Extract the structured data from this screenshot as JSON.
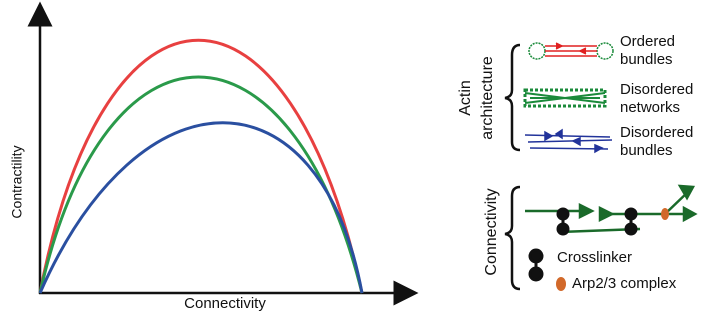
{
  "axes": {
    "y_label": "Contractility",
    "x_label": "Connectivity"
  },
  "architecture": {
    "title": [
      "Actin",
      "architecture"
    ],
    "items": [
      {
        "lines": [
          "Ordered",
          "bundles"
        ],
        "color": "#e02020"
      },
      {
        "lines": [
          "Disordered",
          "networks"
        ],
        "color": "#1a8a3a"
      },
      {
        "lines": [
          "Disordered",
          "bundles"
        ],
        "color": "#22339a"
      }
    ]
  },
  "connectivity": {
    "title": "Connectivity",
    "crosslinker": "Crosslinker",
    "arp": "Arp2/3 complex"
  }
}
